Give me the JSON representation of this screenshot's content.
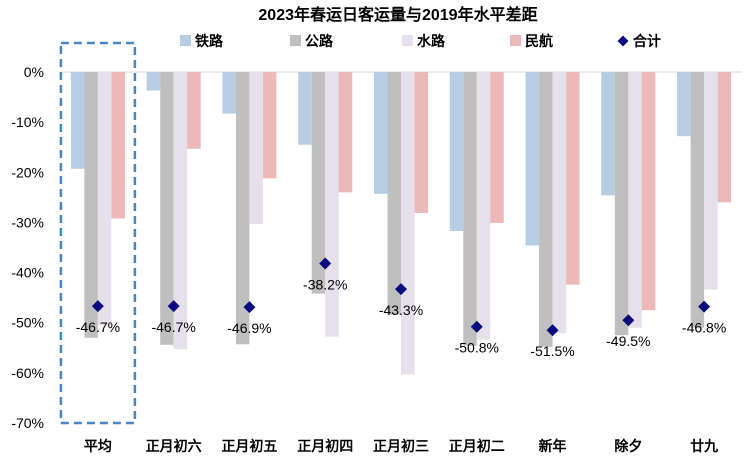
{
  "chart_data": {
    "type": "bar",
    "title": "2023年春运日客运量与2019年水平差距",
    "xlabel": "",
    "ylabel": "",
    "ylim": [
      -70,
      0
    ],
    "yticks": [
      0,
      -10,
      -20,
      -30,
      -40,
      -50,
      -60,
      -70
    ],
    "ytick_labels": [
      "0%",
      "-10%",
      "-20%",
      "-30%",
      "-40%",
      "-50%",
      "-60%",
      "-70%"
    ],
    "legend_position": "top",
    "categories": [
      "平均",
      "正月初六",
      "正月初五",
      "正月初四",
      "正月初三",
      "正月初二",
      "新年",
      "除夕",
      "廿九"
    ],
    "series": [
      {
        "name": "铁路",
        "kind": "bar",
        "color": "#b7cde4",
        "values": [
          -19.3,
          -3.7,
          -8.3,
          -14.5,
          -24.3,
          -31.7,
          -34.6,
          -24.6,
          -12.8
        ]
      },
      {
        "name": "公路",
        "kind": "bar",
        "color": "#bfbfbf",
        "values": [
          -53.0,
          -54.4,
          -54.3,
          -44.2,
          -48.4,
          -54.6,
          -54.8,
          -52.5,
          -51.0
        ]
      },
      {
        "name": "水路",
        "kind": "bar",
        "color": "#e6e0ed",
        "values": [
          -50.5,
          -55.3,
          -30.3,
          -52.8,
          -60.3,
          -53.4,
          -52.1,
          -51.0,
          -43.4
        ]
      },
      {
        "name": "民航",
        "kind": "bar",
        "color": "#ecb8b8",
        "values": [
          -29.2,
          -15.3,
          -21.2,
          -24.0,
          -28.1,
          -30.1,
          -42.4,
          -47.5,
          -26.0
        ]
      },
      {
        "name": "合计",
        "kind": "marker",
        "color": "#0a0a80",
        "values": [
          -46.7,
          -46.7,
          -46.9,
          -38.2,
          -43.3,
          -50.8,
          -51.5,
          -49.5,
          -46.8
        ]
      }
    ],
    "data_labels": [
      "-46.7%",
      "-46.7%",
      "-46.9%",
      "-38.2%",
      "-43.3%",
      "-50.8%",
      "-51.5%",
      "-49.5%",
      "-46.8%"
    ],
    "highlight_category": "平均"
  }
}
